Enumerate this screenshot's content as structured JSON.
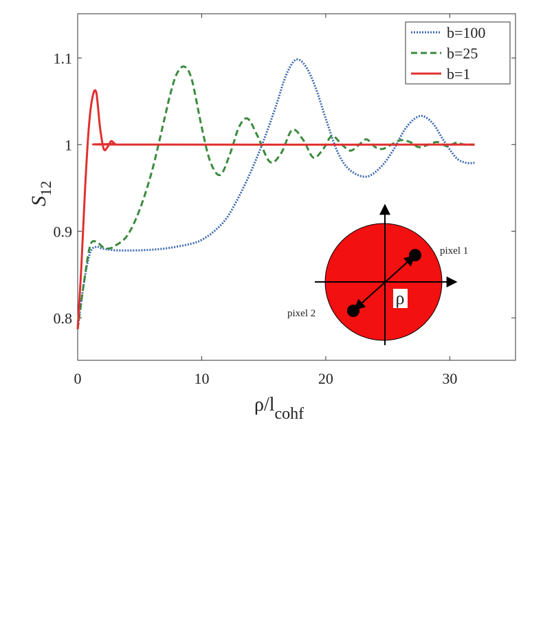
{
  "chart_data": {
    "type": "line",
    "x_label": "ρ/l",
    "x_label_sub": "cohf",
    "y_label": "S",
    "y_label_sub": "12",
    "xlim": [
      0,
      35.3
    ],
    "ylim": [
      0.751,
      1.151
    ],
    "xticks": [
      0,
      10,
      20,
      30
    ],
    "yticks": [
      0.8,
      0.9,
      1,
      1.1
    ],
    "legend": "upper right",
    "annotations": [
      "pixel 1",
      "pixel 2",
      "ρ"
    ],
    "series": [
      {
        "name": "b=100",
        "color": "#3a66b0",
        "style": "dotted",
        "x": [
          0,
          0.5,
          1,
          1.5,
          2,
          3,
          5,
          7,
          9,
          10,
          11,
          12,
          13,
          14,
          15,
          16,
          16.8,
          17.6,
          18.4,
          19.2,
          20,
          21,
          22,
          23.3,
          24.5,
          25.5,
          26.5,
          27.6,
          28.6,
          29.5,
          30.5,
          31.3,
          32
        ],
        "values": [
          0.787,
          0.84,
          0.875,
          0.882,
          0.88,
          0.878,
          0.878,
          0.88,
          0.885,
          0.89,
          0.9,
          0.915,
          0.94,
          0.97,
          1.005,
          1.045,
          1.08,
          1.098,
          1.09,
          1.065,
          1.03,
          0.99,
          0.97,
          0.963,
          0.975,
          0.995,
          1.02,
          1.033,
          1.025,
          1.005,
          0.985,
          0.979,
          0.979
        ]
      },
      {
        "name": "b=25",
        "color": "#3b8a3e",
        "style": "dashed",
        "x": [
          0,
          0.5,
          1,
          1.5,
          2,
          2.5,
          3,
          4,
          5,
          6,
          7,
          7.5,
          8,
          8.6,
          9.2,
          10,
          10.7,
          11.5,
          12.3,
          13,
          13.7,
          14.5,
          15.5,
          16.4,
          17.3,
          18.2,
          19,
          19.8,
          20.5,
          21.3,
          22,
          22.7,
          23.3,
          24,
          24.6,
          25.3,
          26,
          26.8,
          27.5,
          28.3,
          29,
          29.8,
          30.5,
          31.2,
          32
        ],
        "values": [
          0.787,
          0.84,
          0.883,
          0.888,
          0.882,
          0.88,
          0.883,
          0.895,
          0.925,
          0.97,
          1.03,
          1.06,
          1.082,
          1.09,
          1.075,
          1.02,
          0.98,
          0.965,
          0.99,
          1.02,
          1.03,
          1.01,
          0.98,
          0.99,
          1.017,
          1.005,
          0.985,
          0.995,
          1.01,
          1.0,
          0.993,
          1.0,
          1.006,
          0.997,
          0.995,
          1.0,
          1.005,
          1.003,
          0.997,
          1.0,
          1.003,
          0.998,
          1.002,
          1.0,
          1.0
        ]
      },
      {
        "name": "b=1",
        "color": "#e03030",
        "style": "solid",
        "x": [
          0,
          0.3,
          0.6,
          0.9,
          1.2,
          1.5,
          1.8,
          2.1,
          2.4,
          2.7,
          3.0,
          3.5,
          32
        ],
        "values": [
          0.787,
          0.86,
          0.95,
          1.02,
          1.055,
          1.06,
          1.02,
          0.995,
          0.997,
          1.004,
          1.001,
          1.0,
          1.0
        ]
      }
    ]
  }
}
